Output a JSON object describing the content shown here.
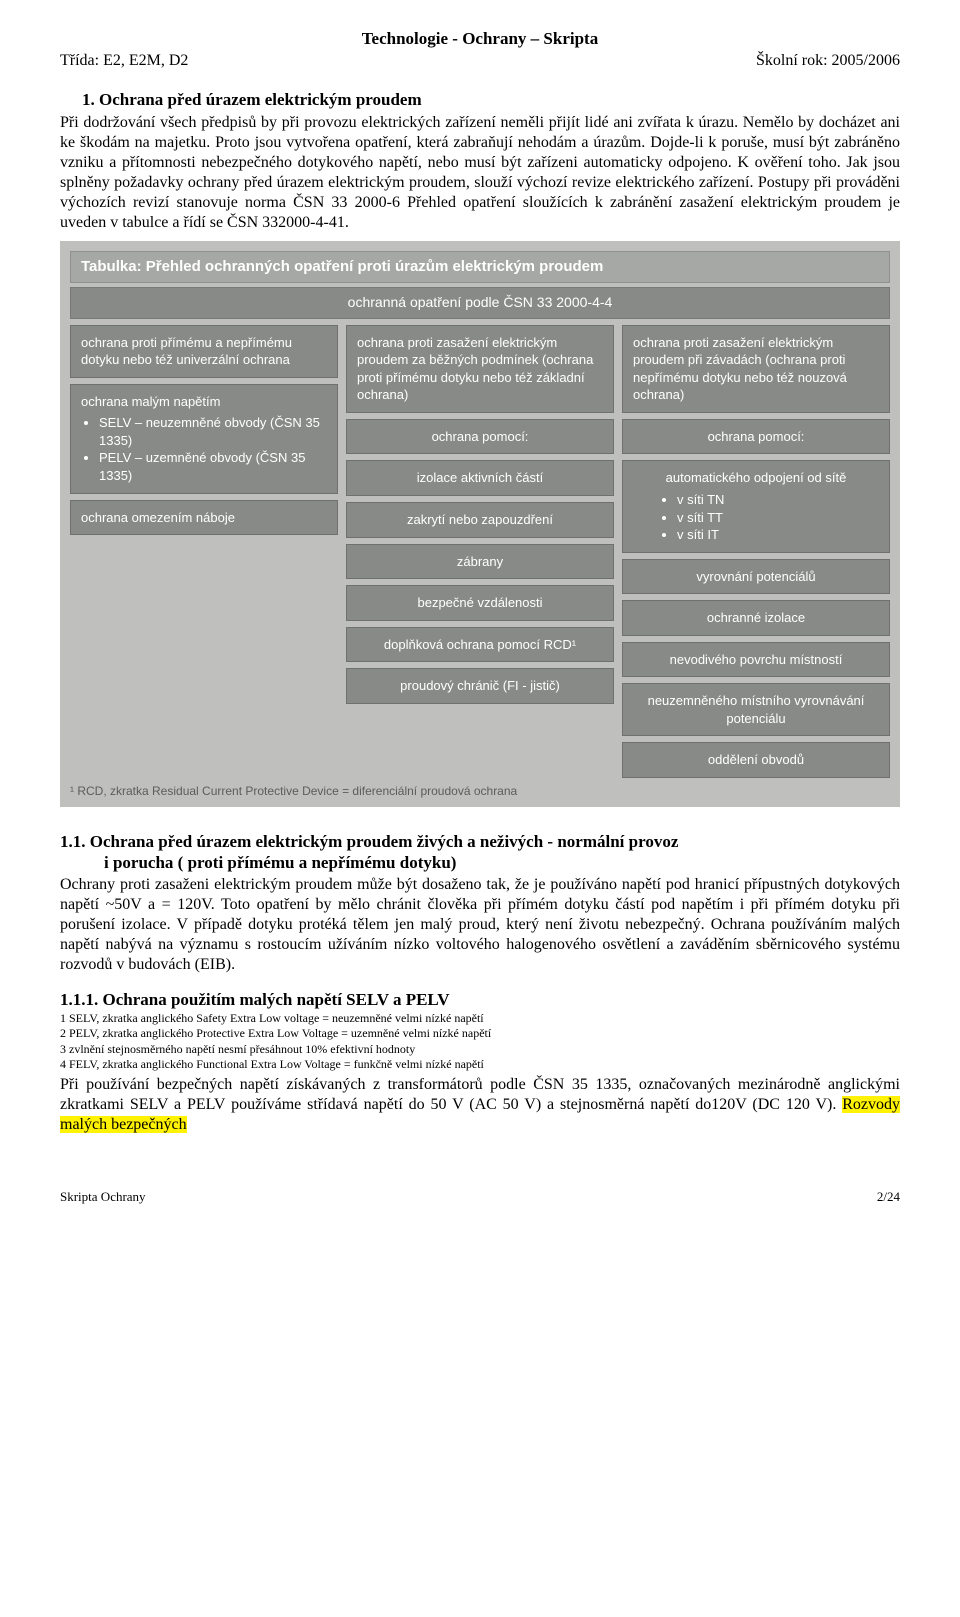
{
  "header": {
    "center_title": "Technologie - Ochrany – Skripta",
    "left": "Třída: E2, E2M,  D2",
    "right": "Školní rok: 2005/2006"
  },
  "sec1": {
    "heading": "1.   Ochrana před úrazem elektrickým proudem",
    "paragraph": "Při dodržování všech předpisů by při provozu elektrických zařízení neměli přijít lidé ani zvířata k úrazu. Nemělo by docházet ani ke škodám na majetku. Proto jsou vytvořena opatření, která zabraňují nehodám a úrazům. Dojde-li k poruše, musí být zabráněno vzniku a přítomnosti nebezpečného dotykového napětí, nebo musí být zařízeni automaticky odpojeno. K ověření toho. Jak jsou splněny požadavky ochrany před úrazem elektrickým proudem, slouží výchozí revize elektrického zařízení. Postupy při prováděni výchozích revizí stanovuje norma ČSN 33 2000-6 Přehled opatření sloužících k zabránění zasažení elektrickým proudem je uveden v tabulce a řídí se ČSN 332000-4-41."
  },
  "table": {
    "title": "Tabulka: Přehled ochranných opatření proti úrazům elektrickým proudem",
    "band": "ochranná opatření podle ČSN 33 2000-4-4",
    "col1": {
      "head": "ochrana proti přímému a nepřímému dotyku nebo též univerzální ochrana",
      "box1_title": "ochrana malým napětím",
      "box1_items": [
        "SELV – neuzemněné obvody (ČSN 35 1335)",
        "PELV – uzemněné obvody (ČSN 35 1335)"
      ],
      "box2": "ochrana omezením náboje"
    },
    "col2": {
      "head": "ochrana proti zasažení elektrickým proudem za běžných podmínek (ochrana proti přímému dotyku nebo též základní ochrana)",
      "sub_title": "ochrana pomocí:",
      "items": [
        "izolace aktivních částí",
        "zakrytí nebo zapouzdření",
        "zábrany",
        "bezpečné vzdálenosti"
      ],
      "supp_title": "doplňková ochrana pomocí RCD¹",
      "supp_item": "proudový chránič (FI - jistič)"
    },
    "col3": {
      "head": "ochrana proti zasažení elektrickým proudem při závadách (ochrana proti nepřímému dotyku nebo též nouzová ochrana)",
      "sub_title": "ochrana pomocí:",
      "item1": "automatického odpojení od sítě",
      "tn": [
        "v síti TN",
        "v síti TT",
        "v síti IT"
      ],
      "rest": [
        "vyrovnání potenciálů",
        "ochranné izolace",
        "nevodivého povrchu místností",
        "neuzemněného místního vyrovnávání potenciálu",
        "oddělení obvodů"
      ]
    },
    "footnote": "¹ RCD, zkratka Residual Current Protective Device = diferenciální proudová ochrana"
  },
  "sec11": {
    "heading_l1": "1.1.    Ochrana před úrazem elektrickým proudem živých a neživých - normální provoz",
    "heading_l2": "i porucha ( proti přímému a nepřímému dotyku)",
    "paragraph": "Ochrany proti zasaženi elektrickým proudem může být dosaženo tak, že je používáno napětí pod hranicí přípustných dotykových napětí  ~50V a = 120V. Toto opatření by mělo chránit člověka při přímém dotyku částí pod napětím i při přímém dotyku při porušení izolace. V případě dotyku protéká tělem jen malý proud, který není životu nebezpečný. Ochrana používáním malých napětí nabývá na významu s rostoucím užíváním nízko voltového halogenového osvětlení a zaváděním sběrnicového systému rozvodů v budovách (EIB)."
  },
  "sec111": {
    "heading": "1.1.1.  Ochrana použitím malých napětí SELV a PELV",
    "notes": [
      "1 SELV, zkratka anglického Safety Extra Low voltage = neuzemněné velmi nízké napětí",
      "2 PELV, zkratka anglického Protective Extra Low Voltage = uzemněné velmi nízké napětí",
      "3 zvlnění stejnosměrného napětí nesmí přesáhnout 10% efektivní hodnoty",
      "4 FELV, zkratka anglického Functional Extra Low Voltage = funkčně velmi nízké napětí"
    ],
    "para_before_hl": "Při používání bezpečných napětí získávaných z transformátorů podle ČSN 35 1335, označovaných mezinárodně anglickými zkratkami SELV a PELV používáme střídavá napětí do 50 V (AC 50 V) a stejnosměrná napětí do120V (DC 120 V). ",
    "para_hl": "Rozvody malých bezpečných"
  },
  "footer": {
    "left": "Skripta Ochrany",
    "right": "2/24"
  }
}
